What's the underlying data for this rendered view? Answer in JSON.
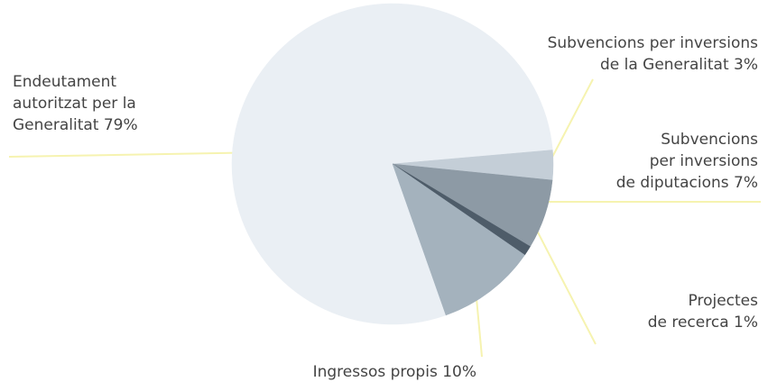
{
  "chart_data": {
    "type": "pie",
    "title": "",
    "unit": "%",
    "slices": [
      {
        "lines": [
          "Endeutament",
          "autoritzat per la",
          "Generalitat 79%"
        ],
        "value": 79,
        "color": "#eaeff4"
      },
      {
        "lines": [
          "Subvencions per inversions",
          "de la Generalitat 3%"
        ],
        "value": 3,
        "color": "#c4ced7"
      },
      {
        "lines": [
          "Subvencions",
          "per inversions",
          "de diputacions 7%"
        ],
        "value": 7,
        "color": "#8d9aa5"
      },
      {
        "lines": [
          "Projectes",
          "de recerca 1%"
        ],
        "value": 1,
        "color": "#4e5c69"
      },
      {
        "lines": [
          "Ingressos propis 10%"
        ],
        "value": 10,
        "color": "#a4b2bd"
      }
    ],
    "leader_color": "#f6f3b0",
    "legend": "none"
  }
}
